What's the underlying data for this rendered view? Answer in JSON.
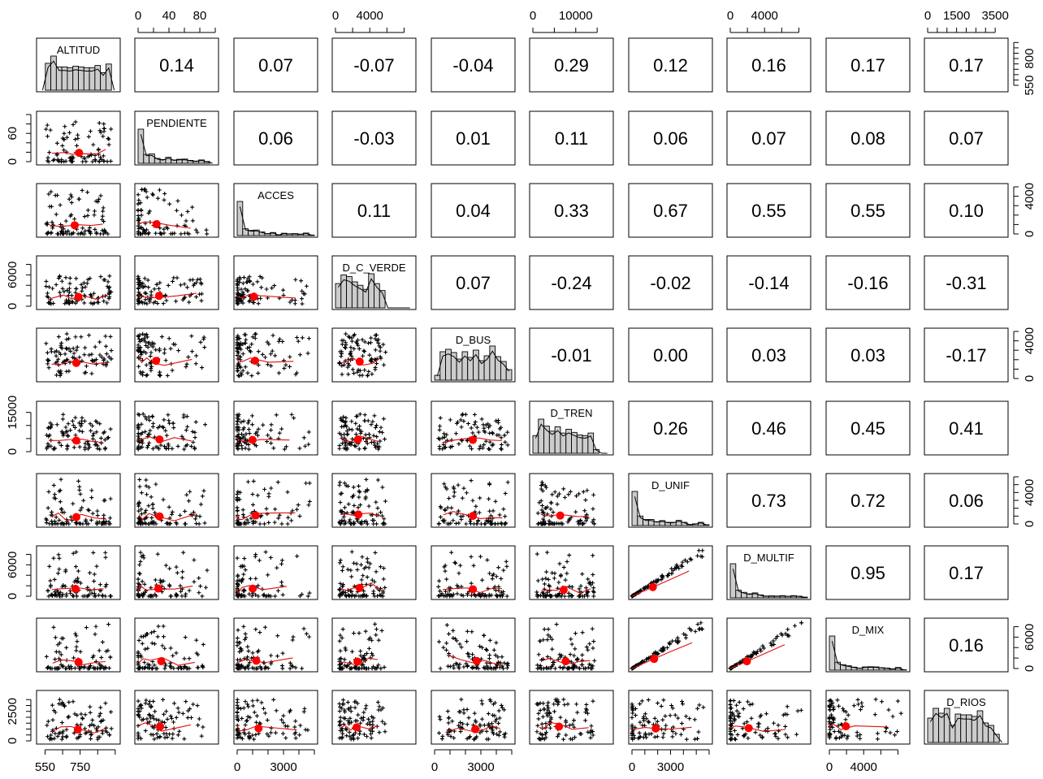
{
  "chart_data": {
    "type": "scatter",
    "variables": [
      "ALTITUD",
      "PENDIENTE",
      "ACCES",
      "D_C_VERDE",
      "D_BUS",
      "D_TREN",
      "D_UNIF",
      "D_MULTIF",
      "D_MIX",
      "D_RIOS"
    ],
    "correlations": [
      [
        null,
        "0.14",
        "0.07",
        "-0.07",
        "-0.04",
        "0.29",
        "0.12",
        "0.16",
        "0.17",
        "0.17"
      ],
      [
        null,
        null,
        "0.06",
        "-0.03",
        "0.01",
        "0.11",
        "0.06",
        "0.07",
        "0.08",
        "0.07"
      ],
      [
        null,
        null,
        null,
        "0.11",
        "0.04",
        "0.33",
        "0.67",
        "0.55",
        "0.55",
        "0.10"
      ],
      [
        null,
        null,
        null,
        null,
        "0.07",
        "-0.24",
        "-0.02",
        "-0.14",
        "-0.16",
        "-0.31"
      ],
      [
        null,
        null,
        null,
        null,
        null,
        "-0.01",
        "0.00",
        "0.03",
        "0.03",
        "-0.17"
      ],
      [
        null,
        null,
        null,
        null,
        null,
        null,
        "0.26",
        "0.46",
        "0.45",
        "0.41"
      ],
      [
        null,
        null,
        null,
        null,
        null,
        null,
        null,
        "0.73",
        "0.72",
        "0.06"
      ],
      [
        null,
        null,
        null,
        null,
        null,
        null,
        null,
        null,
        "0.95",
        "0.17"
      ],
      [
        null,
        null,
        null,
        null,
        null,
        null,
        null,
        null,
        null,
        "0.16"
      ],
      [
        null,
        null,
        null,
        null,
        null,
        null,
        null,
        null,
        null,
        null
      ]
    ],
    "ranges": [
      [
        520,
        960
      ],
      [
        0,
        100
      ],
      [
        0,
        5000
      ],
      [
        0,
        9000
      ],
      [
        0,
        5000
      ],
      [
        0,
        18000
      ],
      [
        0,
        6000
      ],
      [
        0,
        9000
      ],
      [
        0,
        9000
      ],
      [
        0,
        4000
      ]
    ],
    "axes": {
      "top": [
        {
          "col": 1,
          "ticks": [
            0,
            40,
            80
          ],
          "minor": [
            0,
            20,
            40,
            60,
            80,
            100
          ],
          "labels": [
            "0",
            "40",
            "80"
          ]
        },
        {
          "col": 3,
          "ticks": [
            0,
            4000
          ],
          "minor": [
            0,
            2000,
            4000,
            6000,
            8000
          ],
          "labels": [
            "0",
            "4000"
          ]
        },
        {
          "col": 5,
          "ticks": [
            0,
            10000
          ],
          "minor": [
            0,
            5000,
            10000,
            15000
          ],
          "labels": [
            "0",
            "10000"
          ]
        },
        {
          "col": 7,
          "ticks": [
            0,
            4000
          ],
          "minor": [
            0,
            2000,
            4000,
            6000,
            8000
          ],
          "labels": [
            "0",
            "4000"
          ]
        },
        {
          "col": 9,
          "ticks": [
            0,
            1500,
            3500
          ],
          "minor": [
            0,
            500,
            1000,
            1500,
            2000,
            2500,
            3000,
            3500
          ],
          "labels": [
            "0",
            "1500",
            "3500"
          ]
        }
      ],
      "bottom": [
        {
          "col": 0,
          "ticks": [
            550,
            750
          ],
          "minor": [
            550,
            650,
            750,
            850,
            950
          ],
          "labels": [
            "550",
            "750"
          ]
        },
        {
          "col": 2,
          "ticks": [
            0,
            3000
          ],
          "minor": [
            0,
            1000,
            2000,
            3000,
            4000,
            5000
          ],
          "labels": [
            "0",
            "3000"
          ]
        },
        {
          "col": 4,
          "ticks": [
            0,
            3000
          ],
          "minor": [
            0,
            1000,
            2000,
            3000,
            4000,
            5000
          ],
          "labels": [
            "0",
            "3000"
          ]
        },
        {
          "col": 6,
          "ticks": [
            0,
            3000
          ],
          "minor": [
            0,
            1000,
            2000,
            3000,
            4000,
            5000,
            6000
          ],
          "labels": [
            "0",
            "3000"
          ]
        },
        {
          "col": 8,
          "ticks": [
            0,
            4000
          ],
          "minor": [
            0,
            2000,
            4000,
            6000,
            8000
          ],
          "labels": [
            "0",
            "4000"
          ]
        }
      ],
      "left": [
        {
          "row": 1,
          "ticks": [
            0,
            60
          ],
          "minor": [
            0,
            20,
            40,
            60,
            80,
            100
          ],
          "labels": [
            "0",
            "60"
          ]
        },
        {
          "row": 3,
          "ticks": [
            0,
            6000
          ],
          "minor": [
            0,
            2000,
            4000,
            6000,
            8000
          ],
          "labels": [
            "0",
            "6000"
          ]
        },
        {
          "row": 5,
          "ticks": [
            0,
            15000
          ],
          "minor": [
            0,
            5000,
            10000,
            15000
          ],
          "labels": [
            "0",
            "15000"
          ]
        },
        {
          "row": 7,
          "ticks": [
            0,
            6000
          ],
          "minor": [
            0,
            2000,
            4000,
            6000,
            8000
          ],
          "labels": [
            "0",
            "6000"
          ]
        },
        {
          "row": 9,
          "ticks": [
            0,
            2500
          ],
          "minor": [
            0,
            500,
            1000,
            1500,
            2000,
            2500,
            3000,
            3500
          ],
          "labels": [
            "0",
            "2500"
          ]
        }
      ],
      "right": [
        {
          "row": 0,
          "ticks": [
            550,
            800
          ],
          "minor": [
            550,
            600,
            650,
            700,
            750,
            800,
            850,
            900,
            950
          ],
          "labels": [
            "550",
            "800"
          ]
        },
        {
          "row": 2,
          "ticks": [
            0,
            4000
          ],
          "minor": [
            0,
            1000,
            2000,
            3000,
            4000,
            5000
          ],
          "labels": [
            "0",
            "4000"
          ]
        },
        {
          "row": 4,
          "ticks": [
            0,
            4000
          ],
          "minor": [
            0,
            1000,
            2000,
            3000,
            4000,
            5000
          ],
          "labels": [
            "0",
            "4000"
          ]
        },
        {
          "row": 6,
          "ticks": [
            0,
            4000
          ],
          "minor": [
            0,
            1000,
            2000,
            3000,
            4000,
            5000,
            6000
          ],
          "labels": [
            "0",
            "4000"
          ]
        },
        {
          "row": 8,
          "ticks": [
            0,
            6000
          ],
          "minor": [
            0,
            2000,
            4000,
            6000,
            8000
          ],
          "labels": [
            "0",
            "6000"
          ]
        }
      ]
    },
    "grid": false,
    "legend": "none"
  }
}
